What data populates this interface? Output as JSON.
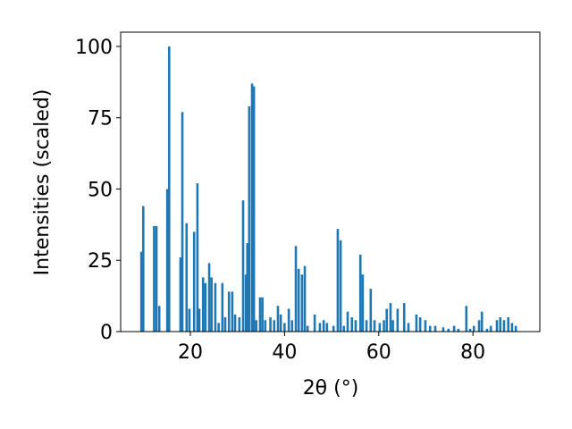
{
  "chart_data": {
    "type": "bar",
    "xlabel": "2θ (°)",
    "ylabel": "Intensities (scaled)",
    "color": "#1f77b4",
    "x": [
      9.6,
      10.0,
      12.3,
      12.8,
      13.4,
      15.1,
      15.5,
      17.9,
      18.3,
      19.2,
      19.8,
      20.8,
      21.5,
      21.9,
      22.7,
      23.2,
      24.0,
      24.5,
      25.3,
      26.0,
      26.8,
      27.4,
      28.2,
      28.9,
      29.5,
      30.4,
      31.2,
      31.8,
      32.1,
      32.5,
      33.1,
      33.5,
      34.0,
      34.8,
      35.3,
      35.9,
      37.0,
      37.8,
      38.6,
      39.2,
      40.0,
      40.9,
      41.6,
      42.4,
      43.0,
      43.7,
      44.3,
      44.9,
      46.4,
      47.5,
      48.3,
      49.0,
      50.4,
      51.3,
      51.9,
      52.6,
      53.4,
      54.3,
      55.1,
      56.1,
      56.6,
      57.4,
      58.3,
      59.1,
      60.2,
      61.1,
      61.7,
      62.5,
      63.0,
      64.0,
      65.4,
      66.3,
      68.0,
      68.8,
      69.9,
      70.9,
      72.0,
      73.7,
      74.8,
      76.0,
      76.9,
      78.6,
      79.4,
      80.2,
      81.3,
      81.9,
      83.0,
      83.8,
      85.1,
      85.8,
      86.6,
      87.5,
      88.3,
      89.1
    ],
    "values": [
      28,
      44,
      37,
      37,
      9,
      50,
      100,
      26,
      77,
      38,
      8,
      35,
      52,
      8,
      19,
      17,
      24,
      19,
      17,
      3,
      17,
      5,
      14,
      14,
      6,
      5,
      46,
      20,
      31,
      79,
      87,
      86,
      4,
      12,
      12,
      4,
      5,
      4,
      9,
      6,
      3,
      8,
      4,
      30,
      22,
      20,
      23,
      2,
      6,
      3,
      4,
      3,
      2,
      36,
      32,
      2,
      7,
      5,
      4,
      27,
      20,
      4,
      15,
      4,
      3,
      4,
      8,
      10,
      4,
      8,
      10,
      3,
      6,
      5,
      4,
      2,
      2,
      1.5,
      1,
      2,
      1,
      9,
      1,
      2,
      4,
      7,
      1,
      2,
      4,
      5,
      4,
      5,
      3,
      2
    ],
    "xlim": [
      5.2,
      94.2
    ],
    "ylim": [
      0,
      105
    ],
    "xticks": [
      20,
      40,
      60,
      80
    ],
    "yticks": [
      0,
      25,
      50,
      75,
      100
    ]
  }
}
